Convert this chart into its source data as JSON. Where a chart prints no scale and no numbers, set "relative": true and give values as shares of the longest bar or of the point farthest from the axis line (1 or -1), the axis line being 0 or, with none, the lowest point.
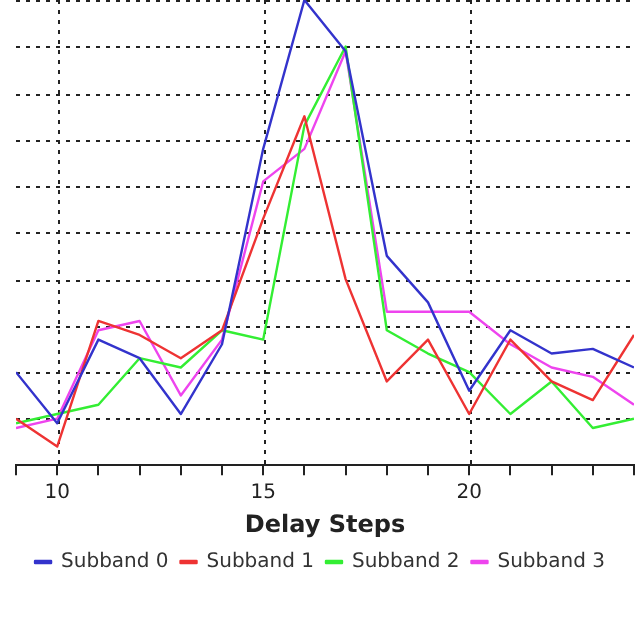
{
  "chart_data": {
    "type": "line",
    "xlabel": "Delay Steps",
    "relative": true,
    "grid": true,
    "legend": "bottom",
    "marker": "none",
    "tick_labels": "x",
    "x": [
      9,
      10,
      11,
      12,
      13,
      14,
      15,
      16,
      17,
      18,
      19,
      20,
      21,
      22,
      23,
      24
    ],
    "xlim": [
      9,
      24
    ],
    "xticks": [
      {
        "value": 9,
        "label": null
      },
      10,
      {
        "value": 11,
        "label": null
      },
      {
        "value": 12,
        "label": null
      },
      {
        "value": 13,
        "label": null
      },
      {
        "value": 14,
        "label": null
      },
      15,
      {
        "value": 16,
        "label": null
      },
      {
        "value": 17,
        "label": null
      },
      {
        "value": 18,
        "label": null
      },
      {
        "value": 19,
        "label": null
      },
      20,
      {
        "value": 21,
        "label": null
      },
      {
        "value": 22,
        "label": null
      },
      {
        "value": 23,
        "label": null
      },
      {
        "value": 24,
        "label": null
      }
    ],
    "series": [
      {
        "name": "Subband 0",
        "color": "#3333cc",
        "values": [
          0.2,
          0.09,
          0.27,
          0.23,
          0.11,
          0.26,
          0.68,
          1,
          0.89,
          0.45,
          0.35,
          0.16,
          0.29,
          0.24,
          0.25,
          0.21
        ]
      },
      {
        "name": "Subband 1",
        "color": "#ee3333",
        "values": [
          0.1,
          0.04,
          0.31,
          0.28,
          0.23,
          0.29,
          0.53,
          0.75,
          0.4,
          0.18,
          0.27,
          0.11,
          0.27,
          0.18,
          0.14,
          0.28
        ]
      },
      {
        "name": "Subband 2",
        "color": "#33ee33",
        "values": [
          0.09,
          0.11,
          0.13,
          0.23,
          0.21,
          0.29,
          0.27,
          0.73,
          0.9,
          0.29,
          0.24,
          0.2,
          0.11,
          0.18,
          0.08,
          0.1
        ]
      },
      {
        "name": "Subband 3",
        "color": "#ee44ee",
        "values": [
          0.08,
          0.1,
          0.29,
          0.31,
          0.15,
          0.27,
          0.61,
          0.68,
          0.89,
          0.33,
          0.33,
          0.33,
          0.26,
          0.21,
          0.19,
          0.13
        ]
      }
    ]
  }
}
